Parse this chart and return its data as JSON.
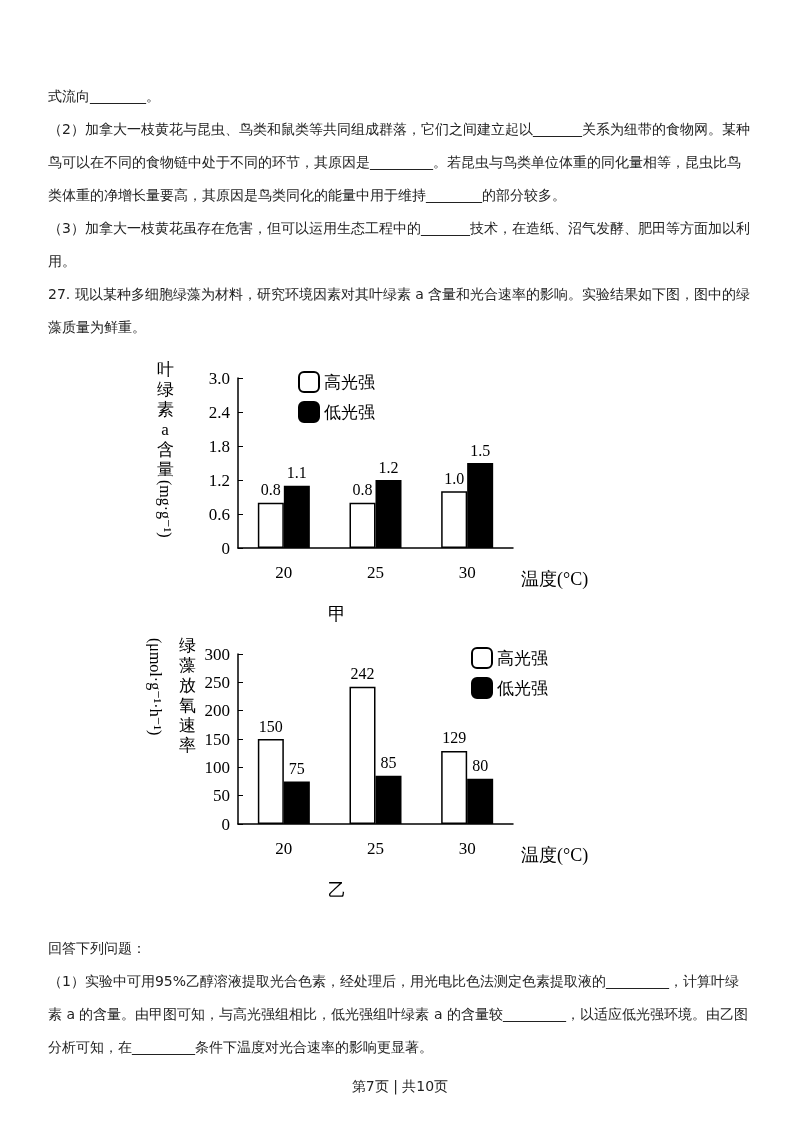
{
  "chart_data": [
    {
      "type": "bar",
      "title": "甲",
      "ylabel": "叶绿素a含量(mg·g⁻¹)",
      "xlabel": "温度(°C)",
      "annotations": [
        "式流向________。",
        "（2）加拿大一枝黄花与昆虫、鸟类和鼠类等共同组成群落，它们之间建立起以_______关系为纽带的食物网。某种鸟可以在不同的食物链中处于不同的环节，其原因是_________。若昆虫与鸟类单位体重的同化量相等，昆虫比鸟类体重的净增长量要高，其原因是鸟类同化的能量中用于维持________的部分较多。",
        "（3）加拿大一枝黄花虽存在危害，但可以运用生态工程中的_______技术，在造纸、沼气发酵、肥田等方面加以利用。",
        "27. 现以某种多细胞绿藻为材料，研究环境因素对其叶绿素 a 含量和光合速率的影响。实验结果如下图，图中的绿藻质量为鲜重。"
      ],
      "categories": [
        "20",
        "25",
        "30"
      ],
      "series": [
        {
          "name": "高光强",
          "color": "#ffffff",
          "values": [
            0.8,
            0.8,
            1.0
          ],
          "value_labels": [
            "0.8",
            "0.8",
            "1.0"
          ]
        },
        {
          "name": "低光强",
          "color": "#000000",
          "values": [
            1.1,
            1.2,
            1.5
          ],
          "value_labels": [
            "1.1",
            "1.2",
            "1.5"
          ]
        }
      ],
      "ylim": [
        0,
        3
      ],
      "yticks": [
        0,
        0.6,
        1.2,
        1.8,
        2.4,
        {
          "value": 3,
          "label": "3.0"
        }
      ],
      "grid": false,
      "legend": "top"
    },
    {
      "type": "bar",
      "title": "乙",
      "ylabel": "绿藻放氧速率(μmol·g⁻¹·h⁻¹)",
      "xlabel": "温度(°C)",
      "annotations": [
        "回答下列问题：",
        "（1）实验中可用95%乙醇溶液提取光合色素，经处理后，用光电比色法测定色素提取液的_________，计算叶绿素 a 的含量。由甲图可知，与高光强组相比，低光强组叶绿素 a 的含量较_________，以适应低光强环境。由乙图分析可知，在_________条件下温度对光合速率的影响更显著。",
        "第7页 | 共10页"
      ],
      "categories": [
        "20",
        "25",
        "30"
      ],
      "series": [
        {
          "name": "高光强",
          "color": "#ffffff",
          "values": [
            150,
            242,
            129
          ]
        },
        {
          "name": "低光强",
          "color": "#000000",
          "values": [
            75,
            85,
            80
          ]
        }
      ],
      "data_labels": true,
      "ylim": [
        0,
        300
      ],
      "yticks": [
        0,
        50,
        100,
        150,
        200,
        250,
        300
      ],
      "grid": false,
      "legend": "top right"
    }
  ]
}
